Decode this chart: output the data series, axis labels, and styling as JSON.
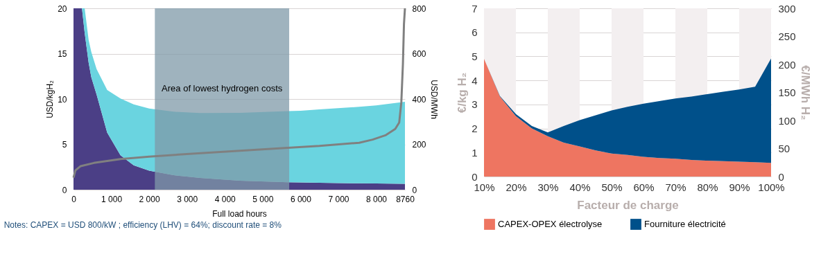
{
  "chart_data": [
    {
      "type": "area",
      "stacked": true,
      "x": [
        0,
        224,
        295,
        400,
        470,
        610,
        890,
        1241,
        1590,
        2000,
        2644,
        3345,
        4397,
        5659,
        6000,
        6500,
        7550,
        8000,
        8760
      ],
      "series": [
        {
          "color": "#4b3f86",
          "values": [
            20,
            20,
            17.3,
            14,
            12.4,
            10.5,
            6.3,
            3.8,
            2.7,
            2.1,
            1.6,
            1.3,
            1.0,
            0.82,
            0.8,
            0.76,
            0.7,
            0.68,
            0.65
          ]
        },
        {
          "color": "#6ad4e0",
          "values": [
            0,
            0,
            2.7,
            2.5,
            2.8,
            2.8,
            4.7,
            6.25,
            6.7,
            6.85,
            7.0,
            7.15,
            7.47,
            7.84,
            7.9,
            8.1,
            8.44,
            8.62,
            9.05
          ]
        },
        {
          "type": "line",
          "axis": "y2",
          "color": "#808080",
          "x": [
            0,
            50,
            190,
            540,
            1241,
            2000,
            2995,
            4397,
            5659,
            6500,
            7550,
            7907,
            8258,
            8503,
            8608,
            8664,
            8706,
            8734,
            8760
          ],
          "values": [
            53,
            85,
            104,
            118,
            135,
            146,
            157,
            172,
            185,
            193,
            207,
            221,
            241,
            268,
            296,
            385,
            553,
            731,
            800
          ]
        }
      ],
      "xlim": [
        0,
        8760
      ],
      "xticks": [
        0,
        {
          "value": 1000,
          "label": "1 000"
        },
        {
          "value": 2000,
          "label": "2 000"
        },
        {
          "value": 3000,
          "label": "3 000"
        },
        {
          "value": 4000,
          "label": "4 000"
        },
        {
          "value": 5000,
          "label": "5 000"
        },
        {
          "value": 6000,
          "label": "6 000"
        },
        {
          "value": 7000,
          "label": "7 000"
        },
        {
          "value": 8000,
          "label": "8 000"
        },
        {
          "value": 8760,
          "label": "8760"
        }
      ],
      "ylim": [
        0,
        20
      ],
      "yticks": [
        0,
        5,
        10,
        15,
        20
      ],
      "y2lim": [
        0,
        800
      ],
      "y2ticks": [
        0,
        200,
        400,
        600,
        800
      ],
      "xlabel": "Full load hours",
      "ylabel": "USD/kgH₂",
      "y2label": "USD/MWh",
      "grid": "y",
      "legend": false,
      "bands": [
        {
          "axis": "x",
          "from": 2150,
          "to": 5700,
          "label": "Area of lowest hydrogen costs",
          "color": "#7f9aa8"
        }
      ],
      "annotations": [
        "Notes: CAPEX = USD 800/kW ; efficiency (LHV) = 64%; discount rate = 8%"
      ]
    },
    {
      "type": "area",
      "stacked": true,
      "x": [
        10,
        15,
        20,
        25,
        30,
        35,
        40,
        45,
        50,
        55,
        60,
        65,
        70,
        75,
        80,
        85,
        90,
        95,
        100
      ],
      "series": [
        {
          "name": "CAPEX-OPEX électrolyse",
          "color": "#ee7561",
          "values": [
            4.9,
            3.33,
            2.51,
            2.0,
            1.68,
            1.41,
            1.25,
            1.09,
            0.96,
            0.9,
            0.82,
            0.77,
            0.74,
            0.69,
            0.66,
            0.64,
            0.62,
            0.6,
            0.57
          ]
        },
        {
          "name": "Fourniture électricité",
          "color": "#00508a",
          "values": [
            0,
            0.02,
            0.09,
            0.1,
            0.16,
            0.69,
            1.1,
            1.46,
            1.79,
            2.0,
            2.21,
            2.37,
            2.51,
            2.64,
            2.77,
            2.89,
            3.0,
            3.14,
            4.34
          ]
        }
      ],
      "xlim": [
        10,
        100
      ],
      "xticks": [
        {
          "value": 10,
          "label": "10%"
        },
        {
          "value": 20,
          "label": "20%"
        },
        {
          "value": 30,
          "label": "30%"
        },
        {
          "value": 40,
          "label": "40%"
        },
        {
          "value": 50,
          "label": "50%"
        },
        {
          "value": 60,
          "label": "60%"
        },
        {
          "value": 70,
          "label": "70%"
        },
        {
          "value": 80,
          "label": "80%"
        },
        {
          "value": 90,
          "label": "90%"
        },
        {
          "value": 100,
          "label": "100%"
        }
      ],
      "ylim": [
        0,
        7
      ],
      "yticks": [
        0,
        1,
        2,
        3,
        4,
        5,
        6,
        7
      ],
      "y2lim": [
        0,
        300
      ],
      "y2ticks": [
        0,
        50,
        100,
        150,
        200,
        250,
        300
      ],
      "xlabel": "Facteur de charge",
      "ylabel": "€/kg H₂",
      "y2label": "€/MWh H₂",
      "grid": "y",
      "legend": "bottom",
      "bands": [
        {
          "axis": "x",
          "from": 10,
          "to": 20,
          "color": "#f3eff0"
        },
        {
          "axis": "x",
          "from": 30,
          "to": 40,
          "color": "#f3eff0"
        },
        {
          "axis": "x",
          "from": 50,
          "to": 60,
          "color": "#f3eff0"
        },
        {
          "axis": "x",
          "from": 70,
          "to": 80,
          "color": "#f3eff0"
        },
        {
          "axis": "x",
          "from": 90,
          "to": 100,
          "color": "#f3eff0"
        }
      ]
    }
  ]
}
